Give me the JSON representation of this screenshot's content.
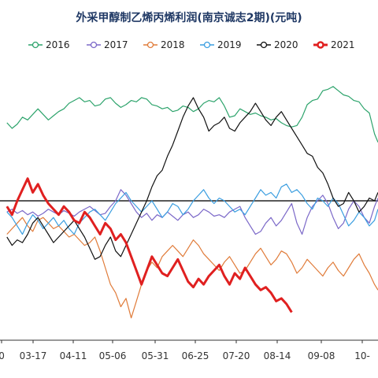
{
  "chart_data": {
    "type": "line",
    "title": "外采甲醇制乙烯丙烯利润(南京诚志2期)(元吨)",
    "xlabel": "",
    "ylabel": "",
    "x_ticks": [
      "0",
      "03-17",
      "04-11",
      "05-06",
      "05-31",
      "06-25",
      "07-20",
      "08-14",
      "09-08",
      "10-"
    ],
    "grid": false,
    "legend": "top",
    "zero_line": true,
    "series": [
      {
        "name": "2016",
        "color": "#2ca36b",
        "width": 1.2,
        "x": [
          0,
          3,
          6,
          9,
          12,
          15,
          18,
          21,
          24,
          27,
          30,
          33,
          36,
          39,
          42,
          45,
          48,
          51,
          54,
          57,
          60,
          63,
          66,
          69,
          72,
          75,
          78,
          81,
          84,
          87,
          90,
          93,
          96,
          99,
          102,
          105,
          108,
          111,
          114,
          117,
          120,
          123,
          126,
          129,
          132,
          135,
          138,
          141,
          144,
          147,
          150,
          153,
          156,
          159,
          162,
          165,
          168,
          171,
          174,
          177,
          180,
          183,
          186,
          189,
          192,
          195,
          198,
          201,
          204,
          207,
          210,
          213,
          215
        ],
        "y": [
          280,
          260,
          275,
          300,
          290,
          310,
          330,
          310,
          290,
          305,
          320,
          330,
          350,
          360,
          370,
          355,
          360,
          340,
          345,
          365,
          370,
          350,
          335,
          345,
          360,
          355,
          370,
          365,
          345,
          340,
          330,
          335,
          320,
          325,
          340,
          335,
          320,
          330,
          350,
          360,
          355,
          370,
          340,
          300,
          305,
          330,
          320,
          310,
          315,
          305,
          300,
          290,
          295,
          280,
          270,
          265,
          270,
          300,
          345,
          360,
          365,
          395,
          400,
          410,
          395,
          380,
          375,
          360,
          355,
          330,
          315,
          240,
          210
        ]
      },
      {
        "name": "2017",
        "color": "#7b68c8",
        "width": 1.2,
        "x": [
          0,
          3,
          6,
          9,
          12,
          15,
          18,
          21,
          24,
          27,
          30,
          33,
          36,
          39,
          42,
          45,
          48,
          51,
          54,
          57,
          60,
          63,
          66,
          69,
          72,
          75,
          78,
          81,
          84,
          87,
          90,
          93,
          96,
          99,
          102,
          105,
          108,
          111,
          114,
          117,
          120,
          123,
          126,
          129,
          132,
          135,
          138,
          141,
          144,
          147,
          150,
          153,
          156,
          159,
          162,
          165,
          168,
          171,
          174,
          177,
          180,
          183,
          186,
          189,
          192,
          195,
          198,
          201,
          204,
          207,
          210,
          213,
          215
        ],
        "y": [
          -40,
          -30,
          -45,
          -35,
          -50,
          -40,
          -55,
          -45,
          -30,
          -40,
          -50,
          -35,
          -45,
          -55,
          -40,
          -30,
          -20,
          -35,
          -50,
          -45,
          -20,
          0,
          40,
          20,
          -10,
          -40,
          -60,
          -45,
          -70,
          -50,
          -60,
          -40,
          -55,
          -70,
          -50,
          -40,
          -60,
          -50,
          -30,
          -40,
          -55,
          -50,
          -60,
          -40,
          -30,
          -20,
          -60,
          -90,
          -120,
          -110,
          -80,
          -60,
          -90,
          -70,
          -40,
          -10,
          -80,
          -120,
          -60,
          -20,
          0,
          20,
          -10,
          -60,
          -100,
          -80,
          -30,
          0,
          -20,
          -60,
          -80,
          -20,
          10
        ]
      },
      {
        "name": "2018",
        "color": "#e07b39",
        "width": 1.2,
        "x": [
          0,
          3,
          6,
          9,
          12,
          15,
          18,
          21,
          24,
          27,
          30,
          33,
          36,
          39,
          42,
          45,
          48,
          51,
          54,
          57,
          60,
          63,
          66,
          69,
          72,
          75,
          78,
          81,
          84,
          87,
          90,
          93,
          96,
          99,
          102,
          105,
          108,
          111,
          114,
          117,
          120,
          123,
          126,
          129,
          132,
          135,
          138,
          141,
          144,
          147,
          150,
          153,
          156,
          159,
          162,
          165,
          168,
          171,
          174,
          177,
          180,
          183,
          186,
          189,
          192,
          195,
          198,
          201,
          204,
          207,
          210,
          213,
          215
        ],
        "y": [
          -120,
          -100,
          -80,
          -60,
          -90,
          -110,
          -70,
          -60,
          -80,
          -100,
          -90,
          -110,
          -130,
          -120,
          -140,
          -160,
          -150,
          -130,
          -180,
          -240,
          -300,
          -330,
          -380,
          -350,
          -420,
          -360,
          -300,
          -250,
          -220,
          -240,
          -200,
          -180,
          -160,
          -180,
          -200,
          -170,
          -140,
          -160,
          -190,
          -210,
          -230,
          -250,
          -220,
          -200,
          -230,
          -260,
          -250,
          -220,
          -190,
          -170,
          -200,
          -230,
          -210,
          -180,
          -190,
          -220,
          -260,
          -240,
          -210,
          -230,
          -250,
          -270,
          -240,
          -220,
          -250,
          -270,
          -240,
          -210,
          -190,
          -230,
          -260,
          -300,
          -320
        ]
      },
      {
        "name": "2019",
        "color": "#3b9ee0",
        "width": 1.2,
        "x": [
          0,
          3,
          6,
          9,
          12,
          15,
          18,
          21,
          24,
          27,
          30,
          33,
          36,
          39,
          42,
          45,
          48,
          51,
          54,
          57,
          60,
          63,
          66,
          69,
          72,
          75,
          78,
          81,
          84,
          87,
          90,
          93,
          96,
          99,
          102,
          105,
          108,
          111,
          114,
          117,
          120,
          123,
          126,
          129,
          132,
          135,
          138,
          141,
          144,
          147,
          150,
          153,
          156,
          159,
          162,
          165,
          168,
          171,
          174,
          177,
          180,
          183,
          186,
          189,
          192,
          195,
          198,
          201,
          204,
          207,
          210,
          213,
          215
        ],
        "y": [
          -40,
          -60,
          -90,
          -120,
          -80,
          -50,
          -70,
          -100,
          -80,
          -60,
          -90,
          -70,
          -100,
          -120,
          -80,
          -60,
          -40,
          -30,
          -50,
          -70,
          -40,
          -10,
          10,
          30,
          0,
          -20,
          -40,
          -20,
          0,
          -30,
          -60,
          -40,
          -10,
          -20,
          -50,
          -30,
          0,
          20,
          40,
          10,
          -10,
          10,
          0,
          -20,
          -40,
          -30,
          -50,
          -20,
          10,
          40,
          20,
          30,
          10,
          50,
          60,
          30,
          40,
          20,
          -10,
          -30,
          10,
          0,
          -20,
          10,
          -10,
          -50,
          -90,
          -70,
          -40,
          -60,
          -90,
          -70,
          -30
        ]
      },
      {
        "name": "2020",
        "color": "#111111",
        "width": 1.2,
        "x": [
          0,
          3,
          6,
          9,
          12,
          15,
          18,
          21,
          24,
          27,
          30,
          33,
          36,
          39,
          42,
          45,
          48,
          51,
          54,
          57,
          60,
          63,
          66,
          69,
          72,
          75,
          78,
          81,
          84,
          87,
          90,
          93,
          96,
          99,
          102,
          105,
          108,
          111,
          114,
          117,
          120,
          123,
          126,
          129,
          132,
          135,
          138,
          141,
          144,
          147,
          150,
          153,
          156,
          159,
          162,
          165,
          168,
          171,
          174,
          177,
          180,
          183,
          186,
          189,
          192,
          195,
          198,
          201,
          204,
          207,
          210,
          213,
          215
        ],
        "y": [
          -130,
          -160,
          -140,
          -150,
          -120,
          -80,
          -60,
          -90,
          -120,
          -150,
          -130,
          -110,
          -90,
          -70,
          -100,
          -130,
          -170,
          -210,
          -200,
          -160,
          -130,
          -180,
          -200,
          -160,
          -120,
          -80,
          -40,
          0,
          50,
          90,
          110,
          160,
          200,
          250,
          300,
          340,
          370,
          330,
          300,
          250,
          270,
          280,
          300,
          260,
          250,
          280,
          300,
          320,
          350,
          320,
          290,
          270,
          300,
          320,
          290,
          260,
          230,
          200,
          170,
          160,
          120,
          100,
          60,
          10,
          -20,
          -10,
          30,
          0,
          -40,
          -20,
          10,
          0,
          30
        ]
      },
      {
        "name": "2021",
        "color": "#e02020",
        "width": 3,
        "x": [
          0,
          3,
          6,
          9,
          12,
          15,
          18,
          21,
          24,
          27,
          30,
          33,
          36,
          39,
          42,
          45,
          48,
          51,
          54,
          57,
          60,
          63,
          66,
          69,
          72,
          75,
          78,
          81,
          84,
          87,
          90,
          93,
          96,
          99,
          102,
          105,
          108,
          111,
          114,
          117,
          120,
          123,
          126,
          129,
          132,
          135,
          138,
          141,
          144,
          147,
          150,
          153,
          156,
          159,
          162,
          165
        ],
        "y": [
          -20,
          -50,
          0,
          40,
          80,
          30,
          60,
          20,
          -10,
          -30,
          -50,
          -20,
          -40,
          -70,
          -80,
          -40,
          -60,
          -90,
          -120,
          -80,
          -100,
          -140,
          -120,
          -150,
          -200,
          -250,
          -300,
          -250,
          -200,
          -230,
          -260,
          -270,
          -240,
          -210,
          -250,
          -290,
          -310,
          -280,
          -300,
          -270,
          -250,
          -230,
          -270,
          -300,
          -260,
          -280,
          -240,
          -270,
          -300,
          -320,
          -310,
          -330,
          -360,
          -350,
          -370,
          -400
        ]
      }
    ],
    "xlim": [
      -4,
      215
    ],
    "ylim": [
      -500,
      500
    ]
  }
}
